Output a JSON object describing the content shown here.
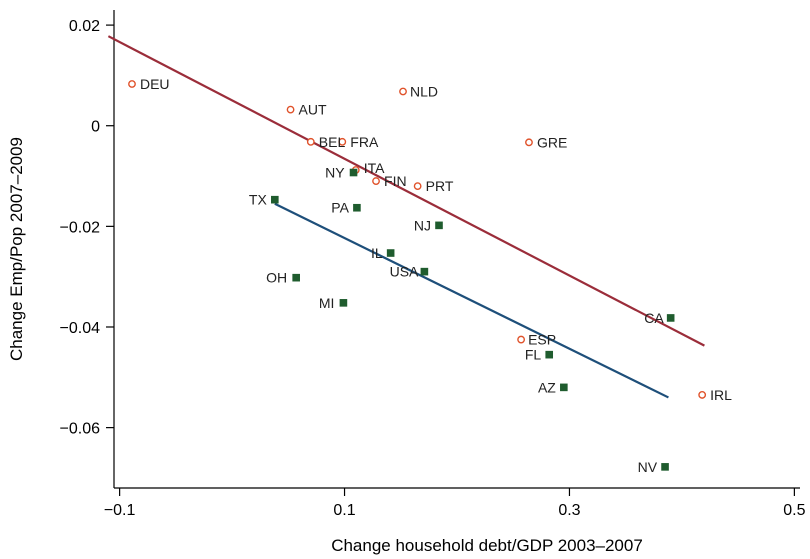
{
  "chart_data": {
    "type": "scatter",
    "title": "",
    "xlabel": "Change household debt/GDP 2003–2007",
    "ylabel": "Change Emp/Pop 2007–2009",
    "xlim": [
      -0.105,
      0.505
    ],
    "ylim": [
      -0.072,
      0.023
    ],
    "xticks": [
      -0.1,
      0.1,
      0.3,
      0.5
    ],
    "xtick_labels": [
      "−0.1",
      "0.1",
      "0.3",
      "0.5"
    ],
    "yticks": [
      0.02,
      0,
      -0.02,
      -0.04,
      -0.06
    ],
    "ytick_labels": [
      "0.02",
      "0",
      "−0.02",
      "−0.04",
      "−0.06"
    ],
    "grid": false,
    "series": [
      {
        "marker": "hollow-circle",
        "color": "#e0522a",
        "points": [
          {
            "label": "DEU",
            "x": -0.089,
            "y": 0.0083
          },
          {
            "label": "AUT",
            "x": 0.052,
            "y": 0.0032
          },
          {
            "label": "NLD",
            "x": 0.152,
            "y": 0.0068
          },
          {
            "label": "BEL",
            "x": 0.07,
            "y": -0.0032
          },
          {
            "label": "FRA",
            "x": 0.098,
            "y": -0.0032
          },
          {
            "label": "GRE",
            "x": 0.264,
            "y": -0.0033
          },
          {
            "label": "ITA",
            "x": 0.11,
            "y": -0.0088
          },
          {
            "label": "FIN",
            "x": 0.128,
            "y": -0.011
          },
          {
            "label": "PRT",
            "x": 0.165,
            "y": -0.012
          },
          {
            "label": "ESP",
            "x": 0.257,
            "y": -0.0425
          },
          {
            "label": "IRL",
            "x": 0.418,
            "y": -0.0535
          }
        ],
        "fit_line": {
          "x": [
            -0.11,
            0.42
          ],
          "y": [
            0.0178,
            -0.0437
          ],
          "color": "#9b2d3a"
        }
      },
      {
        "marker": "filled-square",
        "color": "#1f5c2e",
        "points": [
          {
            "label": "TX",
            "x": 0.038,
            "y": -0.0147
          },
          {
            "label": "NY",
            "x": 0.108,
            "y": -0.0093
          },
          {
            "label": "PA",
            "x": 0.111,
            "y": -0.0163
          },
          {
            "label": "NJ",
            "x": 0.184,
            "y": -0.0198
          },
          {
            "label": "IL",
            "x": 0.141,
            "y": -0.0253
          },
          {
            "label": "USA",
            "x": 0.171,
            "y": -0.029
          },
          {
            "label": "OH",
            "x": 0.057,
            "y": -0.0302
          },
          {
            "label": "MI",
            "x": 0.099,
            "y": -0.0352
          },
          {
            "label": "CA",
            "x": 0.39,
            "y": -0.0382
          },
          {
            "label": "FL",
            "x": 0.282,
            "y": -0.0455
          },
          {
            "label": "AZ",
            "x": 0.295,
            "y": -0.052
          },
          {
            "label": "NV",
            "x": 0.385,
            "y": -0.0678
          }
        ],
        "fit_line": {
          "x": [
            0.038,
            0.388
          ],
          "y": [
            -0.0155,
            -0.054
          ],
          "color": "#1e4f7a"
        }
      }
    ]
  }
}
